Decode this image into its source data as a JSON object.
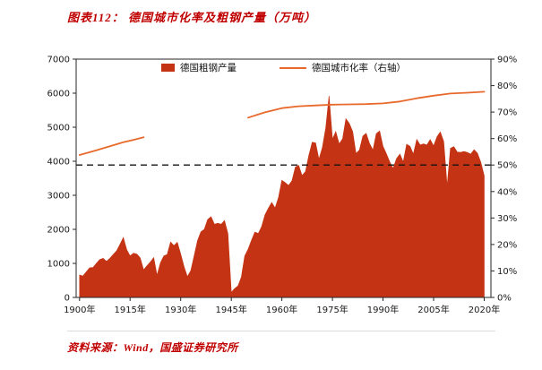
{
  "header": {
    "title": "图表112：  德国城市化率及粗钢产量（万吨）"
  },
  "footer": {
    "source": "资料来源：Wind，国盛证券研究所"
  },
  "colors": {
    "accent_red": "#c00000",
    "steel_fill": "#c43414",
    "urban_line": "#e8692b",
    "reference_line": "#141414",
    "axis": "#262626",
    "tick_text": "#1a1a1a"
  },
  "chart_data": {
    "type": "area",
    "title": "德国城市化率及粗钢产量（万吨）",
    "legend_position": "top-center-inside",
    "grid": false,
    "x_axis": {
      "domain": [
        1899,
        2022
      ],
      "ticks": [
        {
          "label": "1900年",
          "year": 1900
        },
        {
          "label": "1915年",
          "year": 1915
        },
        {
          "label": "1930年",
          "year": 1930
        },
        {
          "label": "1945年",
          "year": 1945
        },
        {
          "label": "1960年",
          "year": 1960
        },
        {
          "label": "1975年",
          "year": 1975
        },
        {
          "label": "1990年",
          "year": 1990
        },
        {
          "label": "2005年",
          "year": 2005
        },
        {
          "label": "2020年",
          "year": 2020
        }
      ]
    },
    "left_axis": {
      "min": 0,
      "max": 7000,
      "step": 1000,
      "ticks": [
        "0",
        "1000",
        "2000",
        "3000",
        "4000",
        "5000",
        "6000",
        "7000"
      ]
    },
    "right_axis": {
      "min": 0,
      "max": 90,
      "step": 10,
      "ticks": [
        "0%",
        "10%",
        "20%",
        "30%",
        "40%",
        "50%",
        "60%",
        "70%",
        "80%",
        "90%"
      ]
    },
    "reference_line": {
      "axis": "right",
      "value": 50,
      "style": "dashed",
      "color": "#141414"
    },
    "series": [
      {
        "name": "德国粗钢产量",
        "type": "area",
        "axis": "left",
        "color": "#c43414",
        "points": [
          [
            1900,
            660
          ],
          [
            1901,
            630
          ],
          [
            1902,
            750
          ],
          [
            1903,
            870
          ],
          [
            1904,
            880
          ],
          [
            1905,
            1000
          ],
          [
            1906,
            1110
          ],
          [
            1907,
            1150
          ],
          [
            1908,
            1060
          ],
          [
            1909,
            1150
          ],
          [
            1910,
            1260
          ],
          [
            1911,
            1370
          ],
          [
            1912,
            1560
          ],
          [
            1913,
            1760
          ],
          [
            1914,
            1400
          ],
          [
            1915,
            1220
          ],
          [
            1916,
            1300
          ],
          [
            1917,
            1270
          ],
          [
            1918,
            1160
          ],
          [
            1919,
            810
          ],
          [
            1920,
            930
          ],
          [
            1921,
            1040
          ],
          [
            1922,
            1170
          ],
          [
            1923,
            650
          ],
          [
            1924,
            1020
          ],
          [
            1925,
            1220
          ],
          [
            1926,
            1260
          ],
          [
            1927,
            1630
          ],
          [
            1928,
            1520
          ],
          [
            1929,
            1620
          ],
          [
            1930,
            1280
          ],
          [
            1931,
            900
          ],
          [
            1932,
            610
          ],
          [
            1933,
            790
          ],
          [
            1934,
            1220
          ],
          [
            1935,
            1670
          ],
          [
            1936,
            1930
          ],
          [
            1937,
            2000
          ],
          [
            1938,
            2290
          ],
          [
            1939,
            2370
          ],
          [
            1940,
            2150
          ],
          [
            1941,
            2180
          ],
          [
            1942,
            2150
          ],
          [
            1943,
            2260
          ],
          [
            1944,
            1880
          ],
          [
            1945,
            150
          ],
          [
            1946,
            260
          ],
          [
            1947,
            340
          ],
          [
            1948,
            600
          ],
          [
            1949,
            1220
          ],
          [
            1950,
            1420
          ],
          [
            1951,
            1680
          ],
          [
            1952,
            1920
          ],
          [
            1953,
            1880
          ],
          [
            1954,
            2080
          ],
          [
            1955,
            2430
          ],
          [
            1956,
            2620
          ],
          [
            1957,
            2790
          ],
          [
            1958,
            2630
          ],
          [
            1959,
            2940
          ],
          [
            1960,
            3440
          ],
          [
            1961,
            3370
          ],
          [
            1962,
            3290
          ],
          [
            1963,
            3430
          ],
          [
            1964,
            3830
          ],
          [
            1965,
            3880
          ],
          [
            1966,
            3580
          ],
          [
            1967,
            3700
          ],
          [
            1968,
            4170
          ],
          [
            1969,
            4560
          ],
          [
            1970,
            4540
          ],
          [
            1971,
            4060
          ],
          [
            1972,
            4400
          ],
          [
            1973,
            4980
          ],
          [
            1974,
            5920
          ],
          [
            1975,
            4650
          ],
          [
            1976,
            4870
          ],
          [
            1977,
            4510
          ],
          [
            1978,
            4660
          ],
          [
            1979,
            5250
          ],
          [
            1980,
            5110
          ],
          [
            1981,
            4870
          ],
          [
            1982,
            4230
          ],
          [
            1983,
            4330
          ],
          [
            1984,
            4740
          ],
          [
            1985,
            4820
          ],
          [
            1986,
            4520
          ],
          [
            1987,
            4330
          ],
          [
            1988,
            4810
          ],
          [
            1989,
            4890
          ],
          [
            1990,
            4440
          ],
          [
            1991,
            4220
          ],
          [
            1992,
            3980
          ],
          [
            1993,
            3790
          ],
          [
            1994,
            4080
          ],
          [
            1995,
            4210
          ],
          [
            1996,
            3980
          ],
          [
            1997,
            4500
          ],
          [
            1998,
            4440
          ],
          [
            1999,
            4210
          ],
          [
            2000,
            4640
          ],
          [
            2001,
            4480
          ],
          [
            2002,
            4510
          ],
          [
            2003,
            4480
          ],
          [
            2004,
            4640
          ],
          [
            2005,
            4450
          ],
          [
            2006,
            4720
          ],
          [
            2007,
            4860
          ],
          [
            2008,
            4580
          ],
          [
            2009,
            3270
          ],
          [
            2010,
            4380
          ],
          [
            2011,
            4430
          ],
          [
            2012,
            4270
          ],
          [
            2013,
            4260
          ],
          [
            2014,
            4290
          ],
          [
            2015,
            4260
          ],
          [
            2016,
            4210
          ],
          [
            2017,
            4340
          ],
          [
            2018,
            4240
          ],
          [
            2019,
            3970
          ],
          [
            2020,
            3570
          ]
        ]
      },
      {
        "name": "德国城市化率（右轴）",
        "type": "line",
        "axis": "right",
        "color": "#e8692b",
        "segments": [
          [
            [
              1900,
              53.8
            ],
            [
              1905,
              55.6
            ],
            [
              1910,
              57.5
            ],
            [
              1913,
              58.6
            ],
            [
              1916,
              59.5
            ],
            [
              1919,
              60.5
            ]
          ],
          [
            [
              1950,
              67.9
            ],
            [
              1955,
              69.9
            ],
            [
              1960,
              71.5
            ],
            [
              1965,
              72.2
            ],
            [
              1970,
              72.5
            ],
            [
              1975,
              72.8
            ],
            [
              1980,
              72.9
            ],
            [
              1985,
              73.0
            ],
            [
              1990,
              73.3
            ],
            [
              1995,
              74.0
            ],
            [
              2000,
              75.2
            ],
            [
              2005,
              76.2
            ],
            [
              2010,
              77.0
            ],
            [
              2015,
              77.3
            ],
            [
              2020,
              77.7
            ]
          ]
        ]
      }
    ]
  }
}
